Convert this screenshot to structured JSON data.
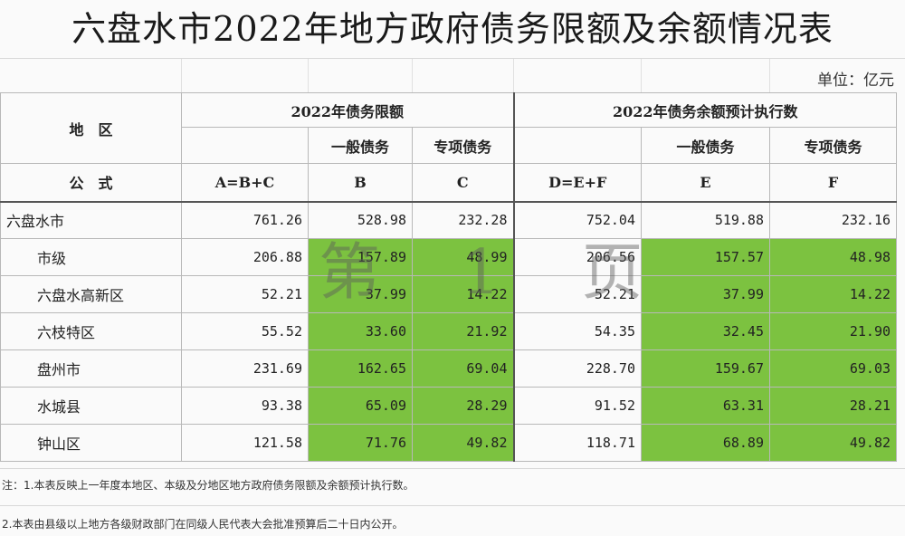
{
  "title": "六盘水市2022年地方政府债务限额及余额情况表",
  "unit": "单位：亿元",
  "header": {
    "region": "地　区",
    "limit_group": "2022年债务限额",
    "balance_group": "2022年债务余额预计执行数",
    "general": "一般债务",
    "special": "专项债务",
    "formula_label": "公　式",
    "formulas": [
      "A=B+C",
      "B",
      "C",
      "D=E+F",
      "E",
      "F"
    ]
  },
  "rows": [
    {
      "name": "六盘水市",
      "a": "761.26",
      "b": "528.98",
      "c": "232.28",
      "d": "752.04",
      "e": "519.88",
      "f": "232.16"
    },
    {
      "name": "市级",
      "a": "206.88",
      "b": "157.89",
      "c": "48.99",
      "d": "206.56",
      "e": "157.57",
      "f": "48.98"
    },
    {
      "name": "六盘水高新区",
      "a": "52.21",
      "b": "37.99",
      "c": "14.22",
      "d": "52.21",
      "e": "37.99",
      "f": "14.22"
    },
    {
      "name": "六枝特区",
      "a": "55.52",
      "b": "33.60",
      "c": "21.92",
      "d": "54.35",
      "e": "32.45",
      "f": "21.90"
    },
    {
      "name": "盘州市",
      "a": "231.69",
      "b": "162.65",
      "c": "69.04",
      "d": "228.70",
      "e": "159.67",
      "f": "69.03"
    },
    {
      "name": "水城县",
      "a": "93.38",
      "b": "65.09",
      "c": "28.29",
      "d": "91.52",
      "e": "63.31",
      "f": "28.21"
    },
    {
      "name": "钟山区",
      "a": "121.58",
      "b": "71.76",
      "c": "49.82",
      "d": "118.71",
      "e": "68.89",
      "f": "49.82"
    }
  ],
  "watermark": "第 1 页",
  "notes": [
    "注：1.本表反映上一年度本地区、本级及分地区地方政府债务限额及余额预计执行数。",
    "2.本表由县级以上地方各级财政部门在同级人民代表大会批准预算后二十日内公开。"
  ],
  "colors": {
    "highlight": "#7cc240"
  }
}
